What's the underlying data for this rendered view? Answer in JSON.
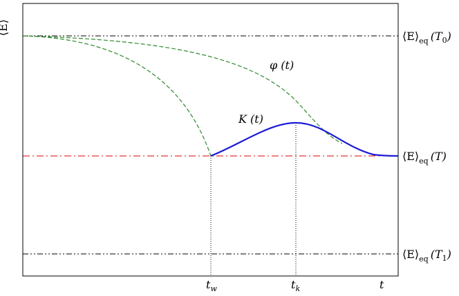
{
  "y_axis_label": "⟨E⟩",
  "levels": [
    {
      "bracket": "⟨E⟩",
      "subscript": "eq",
      "argument": "(T",
      "argument_subscript": "0",
      "close": ")"
    },
    {
      "bracket": "⟨E⟩",
      "subscript": "eq",
      "argument": "(T)"
    },
    {
      "bracket": "⟨E⟩",
      "subscript": "eq",
      "argument": "(T",
      "argument_subscript": "1",
      "close": ")"
    }
  ],
  "curve_labels": {
    "phi": "φ (t)",
    "k": "K (t)"
  },
  "time_labels": [
    {
      "symbol": "t",
      "subscript": "w"
    },
    {
      "symbol": "t",
      "subscript": "k"
    },
    {
      "symbol": "t"
    }
  ]
}
